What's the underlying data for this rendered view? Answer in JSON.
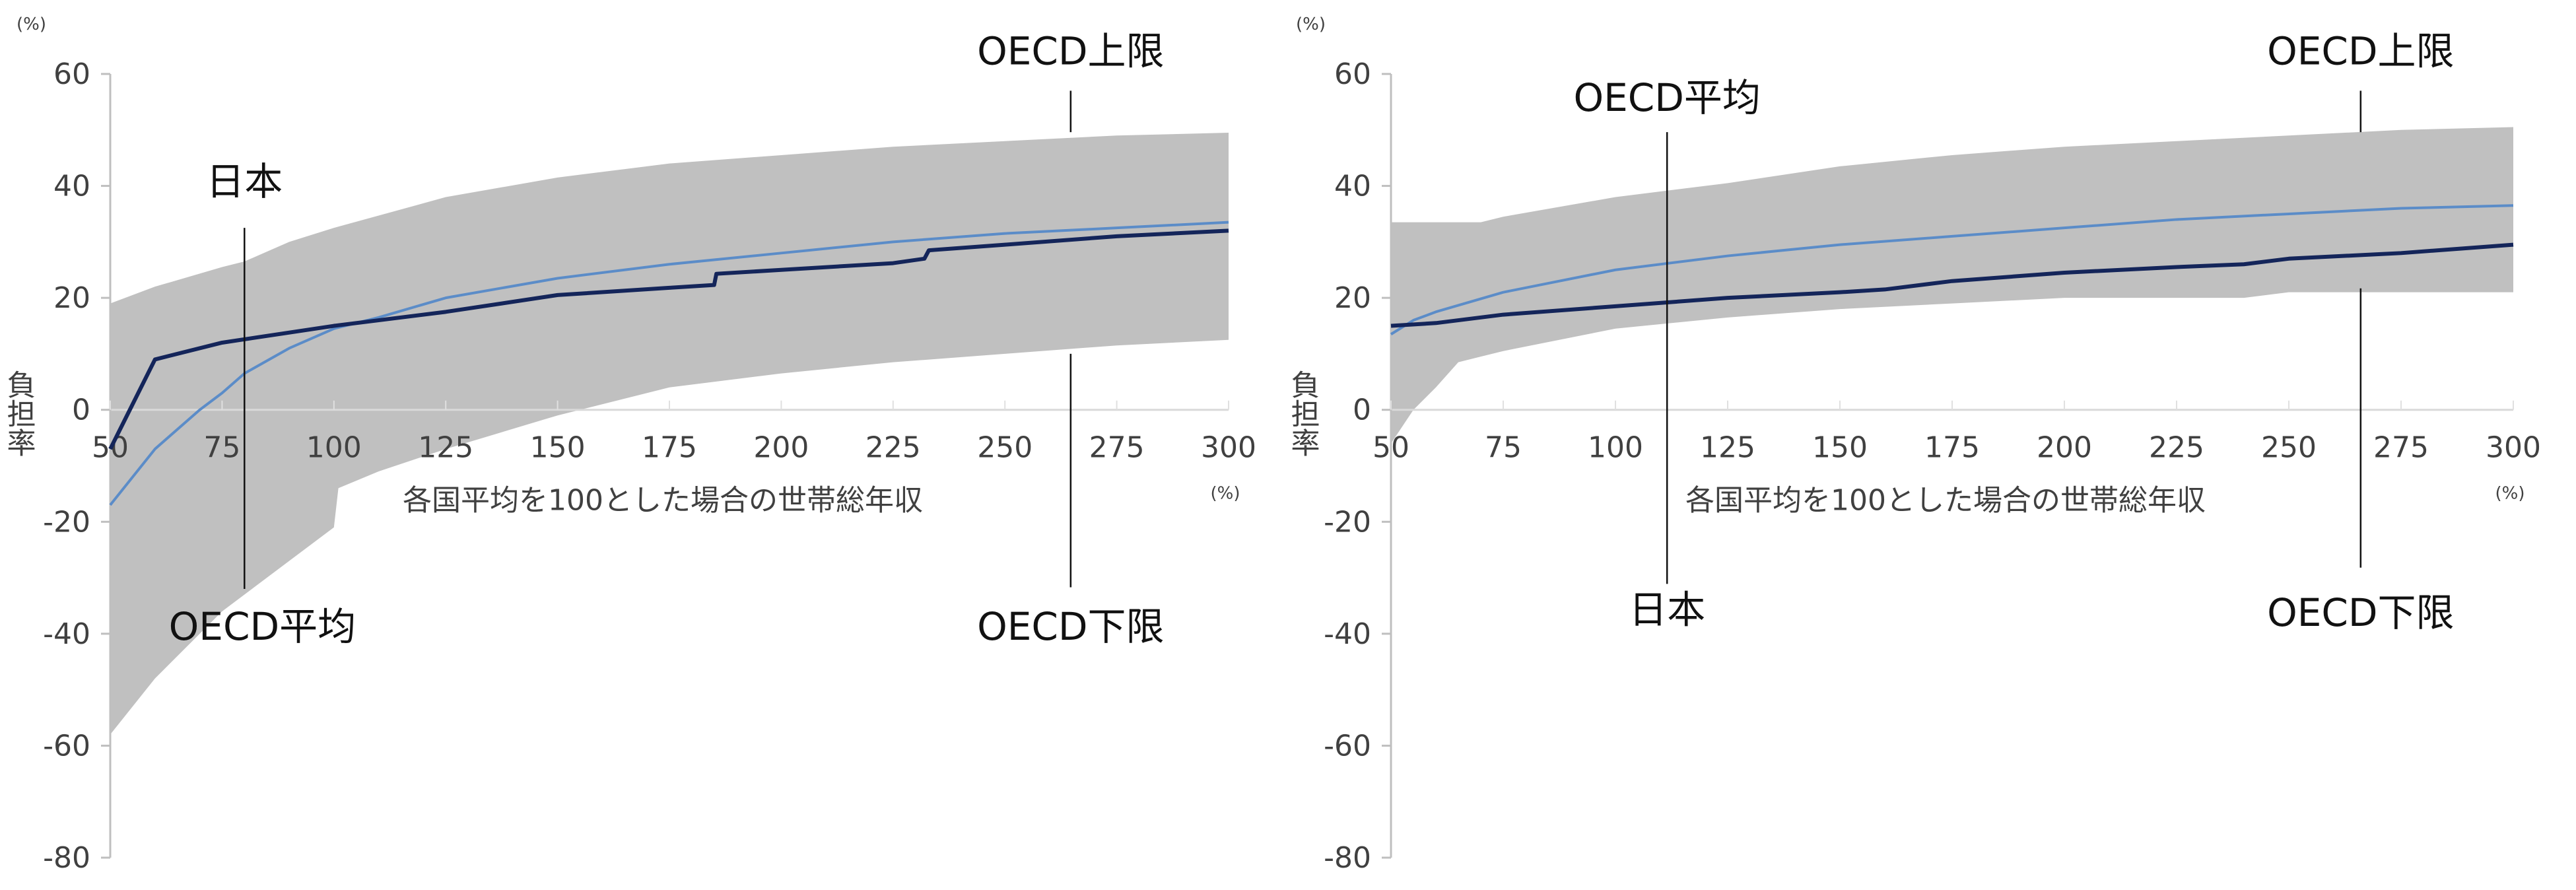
{
  "chart_data": [
    {
      "type": "area",
      "y_unit": "(%)",
      "x_unit": "(%)",
      "ylabel": "負担率",
      "xlabel": "各国平均を100とした場合の世帯総年収",
      "xlim": [
        50,
        300
      ],
      "ylim": [
        -80,
        60
      ],
      "x_ticks": [
        "50",
        "75",
        "100",
        "125",
        "150",
        "175",
        "200",
        "225",
        "250",
        "275",
        "300"
      ],
      "y_ticks": [
        "60",
        "40",
        "20",
        "0",
        "-20",
        "-40",
        "-60",
        "-80"
      ],
      "grid": false,
      "colors": {
        "band": "#c0c0c0",
        "japan": "#14255a",
        "oecd_average": "#5b8cc8"
      },
      "band": {
        "upper": [
          [
            50,
            19
          ],
          [
            60,
            22
          ],
          [
            75,
            25.5
          ],
          [
            80,
            26.5
          ],
          [
            90,
            30
          ],
          [
            100,
            32.5
          ],
          [
            125,
            38
          ],
          [
            150,
            41.5
          ],
          [
            175,
            44
          ],
          [
            200,
            45.5
          ],
          [
            225,
            47
          ],
          [
            250,
            48
          ],
          [
            275,
            49
          ],
          [
            300,
            49.5
          ]
        ],
        "lower": [
          [
            50,
            -58
          ],
          [
            60,
            -48
          ],
          [
            75,
            -36
          ],
          [
            90,
            -27
          ],
          [
            100,
            -21
          ],
          [
            101,
            -14
          ],
          [
            110,
            -11
          ],
          [
            125,
            -7
          ],
          [
            150,
            -1
          ],
          [
            175,
            4
          ],
          [
            200,
            6.5
          ],
          [
            225,
            8.5
          ],
          [
            250,
            10
          ],
          [
            275,
            11.5
          ],
          [
            300,
            12.5
          ]
        ]
      },
      "series": [
        {
          "name": "日本",
          "points": [
            [
              50,
              -7
            ],
            [
              60,
              9
            ],
            [
              75,
              12
            ],
            [
              100,
              15
            ],
            [
              125,
              17.5
            ],
            [
              150,
              20.5
            ],
            [
              175,
              21.8
            ],
            [
              185,
              22.3
            ],
            [
              185.5,
              24.3
            ],
            [
              200,
              25
            ],
            [
              225,
              26.2
            ],
            [
              232,
              27
            ],
            [
              233,
              28.5
            ],
            [
              250,
              29.5
            ],
            [
              275,
              31
            ],
            [
              300,
              32
            ]
          ]
        },
        {
          "name": "OECD平均",
          "points": [
            [
              50,
              -17
            ],
            [
              60,
              -7
            ],
            [
              70,
              0
            ],
            [
              75,
              3
            ],
            [
              80,
              6.5
            ],
            [
              90,
              11
            ],
            [
              100,
              14.5
            ],
            [
              110,
              16.5
            ],
            [
              125,
              20
            ],
            [
              150,
              23.5
            ],
            [
              175,
              26
            ],
            [
              200,
              28
            ],
            [
              225,
              30
            ],
            [
              250,
              31.5
            ],
            [
              275,
              32.5
            ],
            [
              300,
              33.5
            ]
          ]
        }
      ],
      "annotations": {
        "japan": "日本",
        "oecd_average": "OECD平均",
        "oecd_upper": "OECD上限",
        "oecd_lower": "OECD下限"
      }
    },
    {
      "type": "area",
      "y_unit": "(%)",
      "x_unit": "(%)",
      "ylabel": "負担率",
      "xlabel": "各国平均を100とした場合の世帯総年収",
      "xlim": [
        50,
        300
      ],
      "ylim": [
        -80,
        60
      ],
      "x_ticks": [
        "50",
        "75",
        "100",
        "125",
        "150",
        "175",
        "200",
        "225",
        "250",
        "275",
        "300"
      ],
      "y_ticks": [
        "60",
        "40",
        "20",
        "0",
        "-20",
        "-40",
        "-60",
        "-80"
      ],
      "grid": false,
      "colors": {
        "band": "#c0c0c0",
        "japan": "#14255a",
        "oecd_average": "#5b8cc8"
      },
      "band": {
        "upper": [
          [
            50,
            33.5
          ],
          [
            70,
            33.5
          ],
          [
            75,
            34.5
          ],
          [
            100,
            38
          ],
          [
            125,
            40.5
          ],
          [
            150,
            43.5
          ],
          [
            175,
            45.5
          ],
          [
            200,
            47
          ],
          [
            225,
            48
          ],
          [
            250,
            49
          ],
          [
            275,
            50
          ],
          [
            300,
            50.5
          ]
        ],
        "lower": [
          [
            50,
            -6
          ],
          [
            55,
            0
          ],
          [
            60,
            4
          ],
          [
            65,
            8.5
          ],
          [
            70,
            9.5
          ],
          [
            75,
            10.5
          ],
          [
            100,
            14.5
          ],
          [
            125,
            16.5
          ],
          [
            150,
            18
          ],
          [
            175,
            19
          ],
          [
            200,
            20
          ],
          [
            240,
            20
          ],
          [
            250,
            21
          ],
          [
            300,
            21
          ]
        ]
      },
      "series": [
        {
          "name": "日本",
          "points": [
            [
              50,
              15
            ],
            [
              60,
              15.5
            ],
            [
              75,
              17
            ],
            [
              100,
              18.5
            ],
            [
              125,
              20
            ],
            [
              150,
              21
            ],
            [
              160,
              21.5
            ],
            [
              175,
              23
            ],
            [
              200,
              24.5
            ],
            [
              225,
              25.5
            ],
            [
              240,
              26
            ],
            [
              250,
              27
            ],
            [
              275,
              28
            ],
            [
              300,
              29.5
            ]
          ]
        },
        {
          "name": "OECD平均",
          "points": [
            [
              50,
              13.5
            ],
            [
              55,
              16
            ],
            [
              60,
              17.5
            ],
            [
              75,
              21
            ],
            [
              100,
              25
            ],
            [
              125,
              27.5
            ],
            [
              150,
              29.5
            ],
            [
              175,
              31
            ],
            [
              200,
              32.5
            ],
            [
              225,
              34
            ],
            [
              250,
              35
            ],
            [
              275,
              36
            ],
            [
              300,
              36.5
            ]
          ]
        }
      ],
      "annotations": {
        "japan": "日本",
        "oecd_average": "OECD平均",
        "oecd_upper": "OECD上限",
        "oecd_lower": "OECD下限"
      }
    }
  ]
}
